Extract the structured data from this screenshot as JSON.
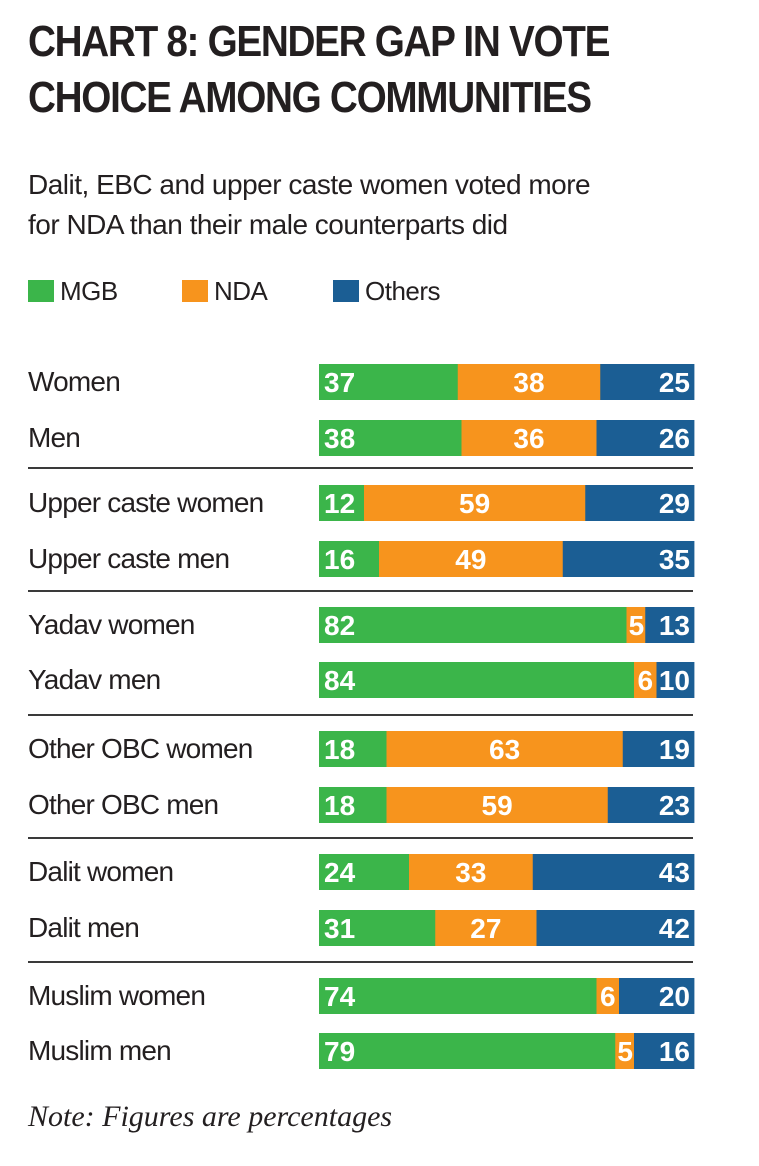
{
  "title_lines": [
    "CHART 8: GENDER GAP IN VOTE",
    "CHOICE AMONG COMMUNITIES"
  ],
  "subtitle_lines": [
    "Dalit, EBC and upper caste women voted more",
    "for NDA than their male counterparts did"
  ],
  "colors": {
    "MGB": "#3bb54a",
    "NDA": "#f7941d",
    "Others": "#1b5e94"
  },
  "chart_data": {
    "type": "bar",
    "orientation": "horizontal",
    "stacked": true,
    "title": "CHART 8: GENDER GAP IN VOTE CHOICE AMONG COMMUNITIES",
    "xlim": [
      0,
      100
    ],
    "legend_position": "top-left",
    "categories": [
      "Women",
      "Men",
      "Upper caste women",
      "Upper caste men",
      "Yadav women",
      "Yadav men",
      "Other OBC women",
      "Other OBC men",
      "Dalit women",
      "Dalit men",
      "Muslim women",
      "Muslim men"
    ],
    "series": [
      {
        "name": "MGB",
        "values": [
          37,
          38,
          12,
          16,
          82,
          84,
          18,
          18,
          24,
          31,
          74,
          79
        ]
      },
      {
        "name": "NDA",
        "values": [
          38,
          36,
          59,
          49,
          5,
          6,
          63,
          59,
          33,
          27,
          6,
          5
        ]
      },
      {
        "name": "Others",
        "values": [
          25,
          26,
          29,
          35,
          13,
          10,
          19,
          23,
          43,
          42,
          20,
          16
        ]
      }
    ],
    "note": "Note: Figures are percentages"
  }
}
